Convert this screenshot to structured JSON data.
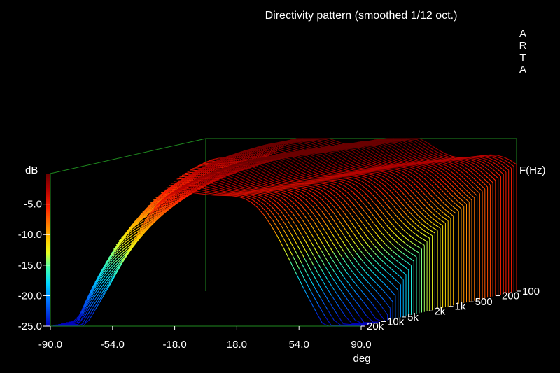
{
  "chart_data": {
    "type": "surface",
    "title": "Directivity pattern (smoothed 1/12 oct.)",
    "watermark": [
      "A",
      "R",
      "T",
      "A"
    ],
    "x_axis": {
      "label": "deg",
      "ticks": [
        "-90.0",
        "-54.0",
        "-18.0",
        "18.0",
        "54.0",
        "90.0"
      ],
      "range": [
        -90,
        90
      ]
    },
    "freq_axis": {
      "label": "F(Hz)",
      "ticks": [
        "100",
        "200",
        "500",
        "1k",
        "2k",
        "5k",
        "10k",
        "20k"
      ],
      "range_hz": [
        100,
        20000
      ],
      "scale": "log"
    },
    "colorbar": {
      "label": "dB",
      "ticks": [
        "-5.0",
        "-10.0",
        "-15.0",
        "-20.0",
        "-25.0"
      ],
      "range": [
        -25,
        0
      ]
    },
    "colors": {
      "background": "#000000",
      "frame": "#1f8a1f",
      "axis_text": "#ffffff"
    },
    "summary": {
      "max_level_db": 0,
      "min_level_db": -25,
      "note_values": "estimated pattern: near 0 dB on-axis at low frequencies, narrowing and dropping toward -25 dB at ±90° for high frequencies"
    }
  }
}
